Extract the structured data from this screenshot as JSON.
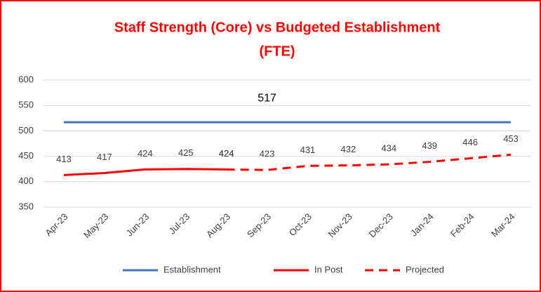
{
  "chart_data": {
    "type": "line",
    "title": [
      "Staff Strength (Core) vs Budgeted Establishment",
      "(FTE)"
    ],
    "categories": [
      "Apr-23",
      "May-23",
      "Jun-23",
      "Jul-23",
      "Aug-23",
      "Sep-23",
      "Oct-23",
      "Nov-23",
      "Dec-23",
      "Jan-24",
      "Feb-24",
      "Mar-24"
    ],
    "series": [
      {
        "name": "Establishment",
        "color": "#4472c4",
        "dash": false,
        "values": [
          517,
          517,
          517,
          517,
          517,
          517,
          517,
          517,
          517,
          517,
          517,
          517
        ],
        "value_labels": [
          null,
          null,
          null,
          null,
          null,
          "517",
          null,
          null,
          null,
          null,
          null,
          null
        ]
      },
      {
        "name": "In Post",
        "color": "#ff0000",
        "dash": false,
        "values": [
          413,
          417,
          424,
          425,
          424,
          null,
          null,
          null,
          null,
          null,
          null,
          null
        ]
      },
      {
        "name": "Projected",
        "color": "#ff0000",
        "dash": true,
        "values": [
          null,
          null,
          null,
          null,
          424,
          423,
          431,
          432,
          434,
          439,
          446,
          453
        ]
      }
    ],
    "ylim": [
      350,
      600
    ],
    "yticks": [
      350,
      400,
      450,
      500,
      550,
      600
    ],
    "grid": true,
    "legend": "bottom"
  }
}
